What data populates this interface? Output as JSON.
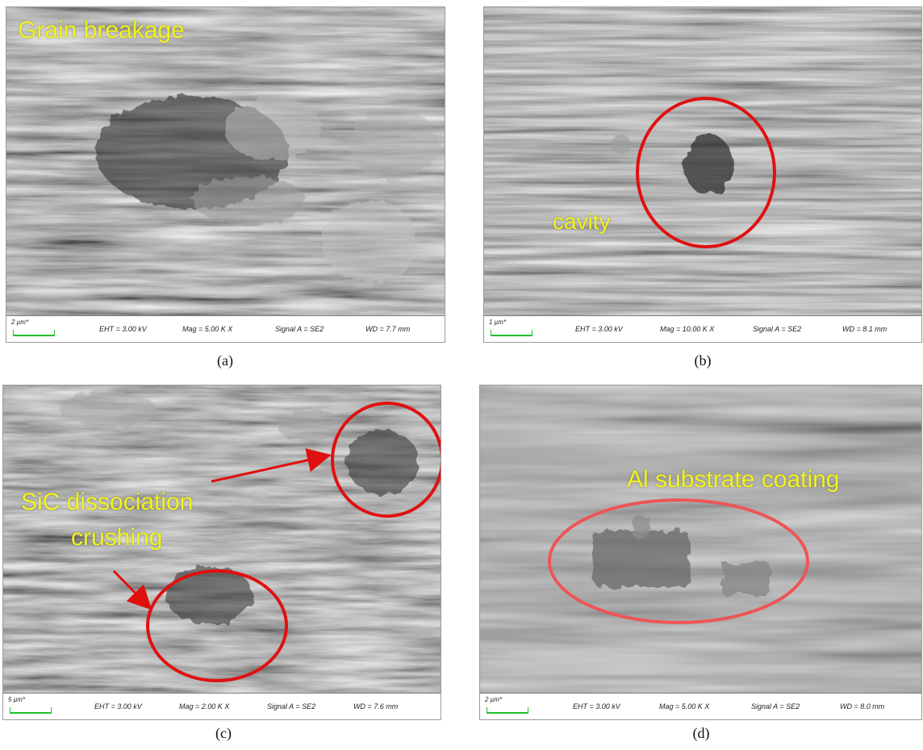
{
  "colors": {
    "annotation_text": "#f3f31a",
    "annotation_ring": "#e01010",
    "scalebar": "#1fbf2f"
  },
  "panels": [
    {
      "caption": "(a)",
      "annotations": [
        "Grain breakage"
      ],
      "info": {
        "scale": "2 µm*",
        "eht": "EHT =  3.00 kV",
        "mag": "Mag =   5.00 K X",
        "signal": "Signal A = SE2",
        "wd": "WD =  7.7 mm"
      }
    },
    {
      "caption": "(b)",
      "annotations": [
        "cavity"
      ],
      "info": {
        "scale": "1 µm*",
        "eht": "EHT =  3.00 kV",
        "mag": "Mag =   10.00 K X",
        "signal": "Signal A = SE2",
        "wd": "WD =  8.1 mm"
      }
    },
    {
      "caption": "(c)",
      "annotations": [
        "SiC dissociation",
        "crushing"
      ],
      "info": {
        "scale": "5 µm*",
        "eht": "EHT =  3.00 kV",
        "mag": "Mag =   2.00 K X",
        "signal": "Signal A = SE2",
        "wd": "WD =  7.6 mm"
      }
    },
    {
      "caption": "(d)",
      "annotations": [
        "Al substrate coating"
      ],
      "info": {
        "scale": "2 µm*",
        "eht": "EHT =  3.00 kV",
        "mag": "Mag =   5.00 K X",
        "signal": "Signal A = SE2",
        "wd": "WD =  8.0 mm"
      }
    }
  ]
}
